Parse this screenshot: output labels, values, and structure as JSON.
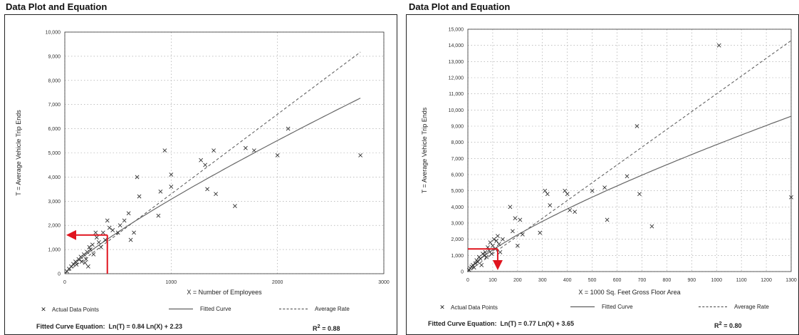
{
  "chart_data": [
    {
      "type": "scatter",
      "title": "Data Plot and Equation",
      "xlabel": "X = Number of Employees",
      "ylabel": "T = Average Vehicle Trip Ends",
      "xlim": [
        0,
        3000
      ],
      "ylim": [
        0,
        10000
      ],
      "x_ticks": [
        0,
        1000,
        2000,
        3000
      ],
      "y_ticks": [
        0,
        1000,
        2000,
        3000,
        4000,
        5000,
        6000,
        7000,
        8000,
        9000,
        10000
      ],
      "y_tick_labels": [
        "0",
        "1,000",
        "2,000",
        "3,000",
        "4,000",
        "5,000",
        "6,000",
        "7,000",
        "8,000",
        "9,000",
        "10,000"
      ],
      "grid": true,
      "legend_position": "bottom",
      "series": [
        {
          "name": "Actual Data Points",
          "style": "x-marker",
          "points": [
            [
              20,
              100
            ],
            [
              40,
              200
            ],
            [
              60,
              300
            ],
            [
              80,
              400
            ],
            [
              100,
              500
            ],
            [
              110,
              380
            ],
            [
              130,
              600
            ],
            [
              150,
              700
            ],
            [
              160,
              500
            ],
            [
              180,
              800
            ],
            [
              190,
              450
            ],
            [
              200,
              600
            ],
            [
              210,
              900
            ],
            [
              220,
              300
            ],
            [
              230,
              1100
            ],
            [
              240,
              1000
            ],
            [
              260,
              1200
            ],
            [
              270,
              800
            ],
            [
              290,
              1700
            ],
            [
              300,
              1500
            ],
            [
              320,
              1300
            ],
            [
              340,
              1100
            ],
            [
              360,
              1700
            ],
            [
              380,
              1400
            ],
            [
              400,
              2200
            ],
            [
              420,
              1900
            ],
            [
              450,
              1800
            ],
            [
              500,
              1700
            ],
            [
              520,
              2000
            ],
            [
              560,
              2200
            ],
            [
              600,
              2500
            ],
            [
              620,
              1400
            ],
            [
              650,
              1700
            ],
            [
              680,
              4000
            ],
            [
              700,
              3200
            ],
            [
              880,
              2400
            ],
            [
              900,
              3400
            ],
            [
              940,
              5100
            ],
            [
              1000,
              4100
            ],
            [
              1000,
              3600
            ],
            [
              1280,
              4700
            ],
            [
              1320,
              4500
            ],
            [
              1340,
              3500
            ],
            [
              1400,
              5100
            ],
            [
              1420,
              3300
            ],
            [
              1600,
              2800
            ],
            [
              1700,
              5200
            ],
            [
              1780,
              5100
            ],
            [
              2000,
              4900
            ],
            [
              2100,
              6000
            ],
            [
              2780,
              4900
            ]
          ]
        },
        {
          "name": "Fitted Curve",
          "style": "solid",
          "equation": "Ln(T) = 0.84 Ln(X) + 2.23"
        },
        {
          "name": "Average Rate",
          "style": "dashed",
          "rate": 3.3
        }
      ],
      "annotations": {
        "fitted_curve_label": "Fitted Curve Equation:",
        "equation": "Ln(T) = 0.84 Ln(X) + 2.23",
        "r2_prefix": "R",
        "r2_value": "= 0.88",
        "arrow_x": 400,
        "arrow_y": 1600
      }
    },
    {
      "type": "scatter",
      "title": "Data Plot and Equation",
      "xlabel": "X = 1000 Sq. Feet Gross Floor Area",
      "ylabel": "T = Average Vehicle Trip Ends",
      "xlim": [
        0,
        1300
      ],
      "ylim": [
        0,
        15000
      ],
      "x_ticks": [
        0,
        100,
        200,
        300,
        400,
        500,
        600,
        700,
        800,
        900,
        1000,
        1100,
        1200,
        1300
      ],
      "y_ticks": [
        0,
        1000,
        2000,
        3000,
        4000,
        5000,
        6000,
        7000,
        8000,
        9000,
        10000,
        11000,
        12000,
        13000,
        14000,
        15000
      ],
      "y_tick_labels": [
        "0",
        "1,000",
        "2,000",
        "3,000",
        "4,000",
        "5,000",
        "6,000",
        "7,000",
        "8,000",
        "9,000",
        "10,000",
        "11,000",
        "12,000",
        "13,000",
        "14,000",
        "15,000"
      ],
      "grid": true,
      "legend_position": "bottom",
      "series": [
        {
          "name": "Actual Data Points",
          "style": "x-marker",
          "points": [
            [
              5,
              100
            ],
            [
              10,
              200
            ],
            [
              15,
              300
            ],
            [
              20,
              400
            ],
            [
              25,
              250
            ],
            [
              30,
              500
            ],
            [
              35,
              700
            ],
            [
              40,
              600
            ],
            [
              45,
              900
            ],
            [
              50,
              800
            ],
            [
              55,
              400
            ],
            [
              60,
              1100
            ],
            [
              65,
              1000
            ],
            [
              70,
              1200
            ],
            [
              75,
              900
            ],
            [
              80,
              1500
            ],
            [
              85,
              1300
            ],
            [
              90,
              1800
            ],
            [
              95,
              1100
            ],
            [
              100,
              1600
            ],
            [
              105,
              2000
            ],
            [
              110,
              1400
            ],
            [
              115,
              1900
            ],
            [
              120,
              2200
            ],
            [
              125,
              1700
            ],
            [
              130,
              1200
            ],
            [
              140,
              2000
            ],
            [
              170,
              4000
            ],
            [
              180,
              2500
            ],
            [
              190,
              3300
            ],
            [
              200,
              1600
            ],
            [
              210,
              3200
            ],
            [
              220,
              2300
            ],
            [
              290,
              2400
            ],
            [
              310,
              5000
            ],
            [
              320,
              4800
            ],
            [
              330,
              4100
            ],
            [
              390,
              5000
            ],
            [
              400,
              4800
            ],
            [
              410,
              3800
            ],
            [
              430,
              3700
            ],
            [
              500,
              5000
            ],
            [
              550,
              5200
            ],
            [
              560,
              3200
            ],
            [
              640,
              5900
            ],
            [
              680,
              9000
            ],
            [
              690,
              4800
            ],
            [
              740,
              2800
            ],
            [
              1010,
              14000
            ],
            [
              1300,
              4600
            ]
          ]
        },
        {
          "name": "Fitted Curve",
          "style": "solid",
          "equation": "Ln(T) = 0.77 Ln(X) + 3.65"
        },
        {
          "name": "Average Rate",
          "style": "dashed",
          "rate": 11.0
        }
      ],
      "annotations": {
        "fitted_curve_label": "Fitted Curve Equation:",
        "equation": "Ln(T) = 0.77 Ln(X) + 3.65",
        "r2_prefix": "R",
        "r2_value": "= 0.80",
        "arrow_x": 120,
        "arrow_y": 1400
      }
    }
  ],
  "colors": {
    "arrow": "#e0141e",
    "grid": "#9a9a9a",
    "axis": "#333333",
    "marker": "#333333"
  },
  "legend_labels": {
    "points": "Actual Data Points",
    "fitted": "Fitted Curve",
    "average": "Average Rate"
  },
  "r2_superscript": "2"
}
